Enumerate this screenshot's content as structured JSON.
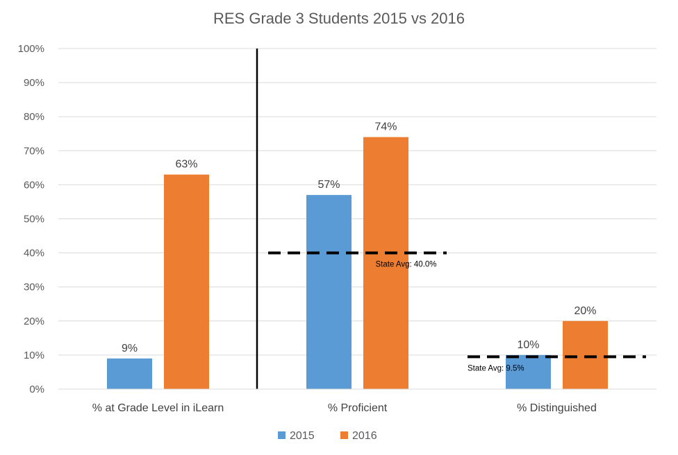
{
  "chart_data": {
    "type": "bar",
    "title": "RES Grade 3 Students 2015 vs 2016",
    "xlabel": "",
    "ylabel": "",
    "categories": [
      "% at Grade Level in iLearn",
      "% Proficient",
      "% Distinguished"
    ],
    "series": [
      {
        "name": "2015",
        "values": [
          9,
          57,
          10
        ],
        "labels": [
          "9%",
          "57%",
          "10%"
        ],
        "color": "#5B9BD5"
      },
      {
        "name": "2016",
        "values": [
          63,
          74,
          20
        ],
        "labels": [
          "63%",
          "74%",
          "20%"
        ],
        "color": "#ED7D31"
      }
    ],
    "ylim": [
      0,
      100
    ],
    "yticks": [
      0,
      10,
      20,
      30,
      40,
      50,
      60,
      70,
      80,
      90,
      100
    ],
    "ytick_labels": [
      "0%",
      "10%",
      "20%",
      "30%",
      "40%",
      "50%",
      "60%",
      "70%",
      "80%",
      "90%",
      "100%"
    ],
    "grid": true,
    "legend_position": "bottom",
    "divider_after_category": 0,
    "reference_lines": [
      {
        "category_index": 1,
        "value": 40.0,
        "label": "State Avg: 40.0%"
      },
      {
        "category_index": 2,
        "value": 9.5,
        "label": "State Avg: 9.5%"
      }
    ]
  }
}
